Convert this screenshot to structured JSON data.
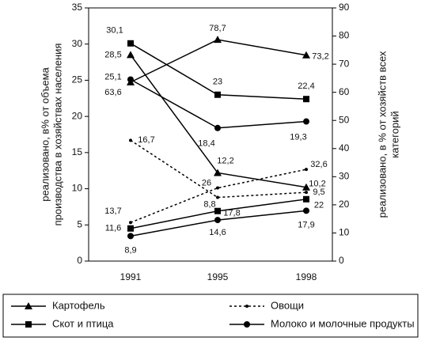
{
  "chart_data": {
    "type": "line",
    "categories": [
      "1991",
      "1995",
      "1998"
    ],
    "ylim": [
      0,
      35
    ],
    "yticks": [
      0,
      5,
      10,
      15,
      20,
      25,
      30,
      35
    ],
    "y2lim": [
      0,
      90
    ],
    "y2ticks": [
      0,
      10,
      20,
      30,
      40,
      50,
      60,
      70,
      80,
      90
    ],
    "ylabel": [
      "реализовано, в% от объема",
      "производства в хозяйствах населения"
    ],
    "y2label": [
      "реализовано, в % от хозяйств всех",
      "категорий"
    ],
    "series": [
      {
        "name": "Картофель",
        "color": "#000000",
        "marker": "triangle",
        "dash": "solid",
        "values": [
          28.5,
          12.2,
          10.2
        ],
        "value_labels": [
          "28,5",
          "12,2",
          "10,2"
        ]
      },
      {
        "name": "Овощи",
        "color": "#000000",
        "marker": "dot",
        "dash": "dashed",
        "values": [
          16.7,
          8.8,
          9.5
        ],
        "value_labels": [
          "16,7",
          "8,8",
          "9,5"
        ]
      },
      {
        "name": "Скот и птица",
        "color": "#000000",
        "marker": "square",
        "dash": "solid",
        "values": [
          30.1,
          23,
          22.4
        ],
        "value_labels": [
          "30,1",
          "23",
          "22,4"
        ]
      },
      {
        "name": "Молоко и молочные продукты",
        "color": "#000000",
        "marker": "circle",
        "dash": "solid",
        "values": [
          25.1,
          18.4,
          19.3
        ],
        "value_labels": [
          "25,1",
          "18,4",
          "19,3"
        ]
      },
      {
        "name": "Картофель",
        "color": "#000000",
        "marker": "triangle",
        "dash": "solid",
        "axis": "y2",
        "values": [
          63.6,
          78.7,
          73.2
        ],
        "value_labels": [
          "63,6",
          "78,7",
          "73,2"
        ]
      },
      {
        "name": "Овощи",
        "color": "#000000",
        "marker": "dot",
        "dash": "dashed",
        "axis": "y2",
        "values": [
          13.7,
          26,
          32.6
        ],
        "value_labels": [
          "13,7",
          "26",
          "32,6"
        ]
      },
      {
        "name": "Скот и птица",
        "color": "#000000",
        "marker": "square",
        "dash": "solid",
        "axis": "y2",
        "values": [
          11.6,
          17.8,
          22
        ],
        "value_labels": [
          "11,6",
          "17,8",
          "22"
        ]
      },
      {
        "name": "Молоко и молочные продукты",
        "color": "#000000",
        "marker": "circle",
        "dash": "solid",
        "axis": "y2",
        "values": [
          8.9,
          14.6,
          17.9
        ],
        "value_labels": [
          "8,9",
          "14,6",
          "17,9"
        ]
      }
    ]
  }
}
